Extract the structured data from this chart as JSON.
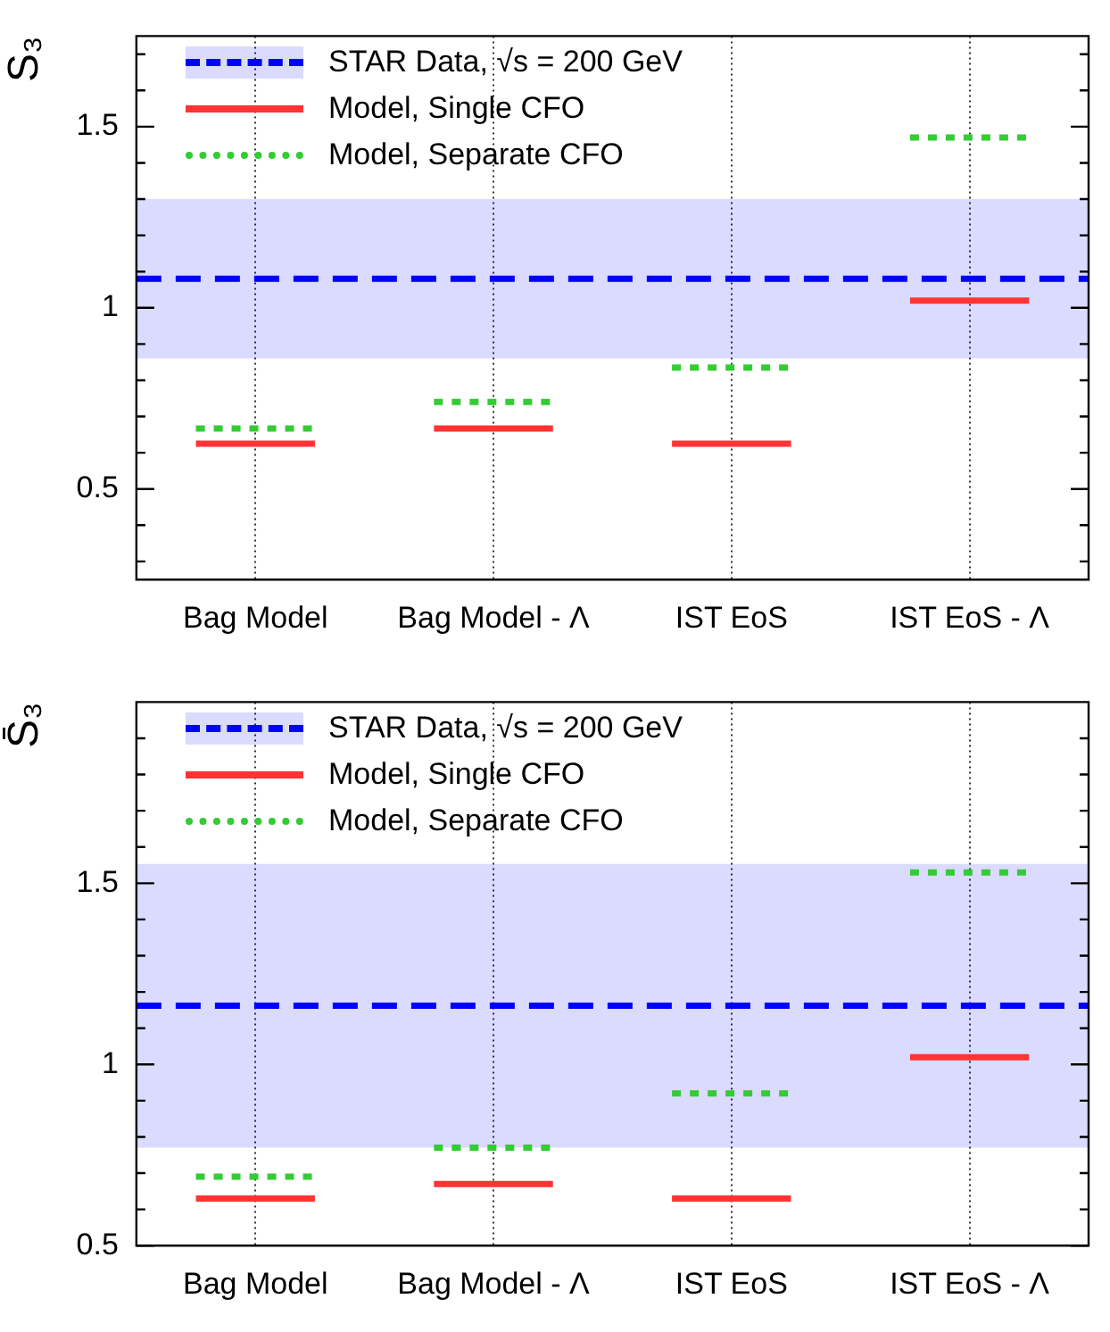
{
  "chart_data": [
    {
      "type": "line",
      "ylabel": "S₃",
      "categories": [
        null,
        null,
        "Bag Model",
        null,
        null,
        null,
        "Bag Model - Λ",
        null,
        null,
        null,
        "IST EoS",
        null,
        null,
        null,
        "IST EoS - Λ",
        null,
        null
      ],
      "series": [
        {
          "name": "STAR Data, √s = 200 GeV",
          "color": "#0000ff",
          "line_style": "dashed",
          "values": [
            1.08,
            1.08,
            1.08,
            1.08,
            1.08,
            1.08,
            1.08,
            1.08,
            1.08,
            1.08,
            1.08,
            1.08,
            1.08,
            1.08,
            1.08,
            1.08,
            1.08
          ],
          "lower": [
            0.86,
            0.86,
            0.86,
            0.86,
            0.86,
            0.86,
            0.86,
            0.86,
            0.86,
            0.86,
            0.86,
            0.86,
            0.86,
            0.86,
            0.86,
            0.86,
            0.86
          ],
          "upper": [
            1.3,
            1.3,
            1.3,
            1.3,
            1.3,
            1.3,
            1.3,
            1.3,
            1.3,
            1.3,
            1.3,
            1.3,
            1.3,
            1.3,
            1.3,
            1.3,
            1.3
          ]
        },
        {
          "name": "Model, Single CFO",
          "color": "#ff3333",
          "line_style": "solid",
          "values": [
            null,
            0.625,
            0.625,
            0.625,
            null,
            0.667,
            0.667,
            0.667,
            null,
            0.625,
            0.625,
            0.625,
            null,
            1.02,
            1.02,
            1.02,
            null
          ]
        },
        {
          "name": "Model, Separate CFO",
          "color": "#33cc33",
          "line_style": "dotted",
          "values": [
            null,
            0.667,
            0.667,
            0.667,
            null,
            0.74,
            0.74,
            0.74,
            null,
            0.835,
            0.835,
            0.835,
            null,
            1.47,
            1.47,
            1.47,
            null
          ]
        }
      ],
      "ylim": [
        0.25,
        1.75
      ],
      "yticks": [
        {
          "value": 0.3,
          "label": null
        },
        {
          "value": 0.4,
          "label": null
        },
        0.5,
        {
          "value": 0.6,
          "label": null
        },
        {
          "value": 0.7,
          "label": null
        },
        {
          "value": 0.8,
          "label": null
        },
        {
          "value": 0.9,
          "label": null
        },
        1,
        {
          "value": 1.1,
          "label": null
        },
        {
          "value": 1.2,
          "label": null
        },
        {
          "value": 1.3,
          "label": null
        },
        {
          "value": 1.4,
          "label": null
        },
        1.5,
        {
          "value": 1.6,
          "label": null
        },
        {
          "value": 1.7,
          "label": null
        }
      ],
      "grid": "x",
      "legend": "top left"
    },
    {
      "type": "line",
      "ylabel": "S̄₃",
      "categories": [
        null,
        null,
        "Bag Model",
        null,
        null,
        null,
        "Bag Model - Λ",
        null,
        null,
        null,
        "IST EoS",
        null,
        null,
        null,
        "IST EoS - Λ",
        null,
        null
      ],
      "series": [
        {
          "name": "STAR Data, √s = 200 GeV",
          "color": "#0000ff",
          "line_style": "dashed",
          "values": [
            1.162,
            1.162,
            1.162,
            1.162,
            1.162,
            1.162,
            1.162,
            1.162,
            1.162,
            1.162,
            1.162,
            1.162,
            1.162,
            1.162,
            1.162,
            1.162,
            1.162
          ],
          "lower": [
            0.77,
            0.77,
            0.77,
            0.77,
            0.77,
            0.77,
            0.77,
            0.77,
            0.77,
            0.77,
            0.77,
            0.77,
            0.77,
            0.77,
            0.77,
            0.77,
            0.77
          ],
          "upper": [
            1.553,
            1.553,
            1.553,
            1.553,
            1.553,
            1.553,
            1.553,
            1.553,
            1.553,
            1.553,
            1.553,
            1.553,
            1.553,
            1.553,
            1.553,
            1.553,
            1.553
          ]
        },
        {
          "name": "Model, Single CFO",
          "color": "#ff3333",
          "line_style": "solid",
          "values": [
            null,
            0.63,
            0.63,
            0.63,
            null,
            0.67,
            0.67,
            0.67,
            null,
            0.63,
            0.63,
            0.63,
            null,
            1.02,
            1.02,
            1.02,
            null
          ]
        },
        {
          "name": "Model, Separate CFO",
          "color": "#33cc33",
          "line_style": "dotted",
          "values": [
            null,
            0.69,
            0.69,
            0.69,
            null,
            0.77,
            0.77,
            0.77,
            null,
            0.92,
            0.92,
            0.92,
            null,
            1.53,
            1.53,
            1.53,
            null
          ]
        }
      ],
      "ylim": [
        0.5,
        2.0
      ],
      "yticks": [
        0.5,
        {
          "value": 0.6,
          "label": null
        },
        {
          "value": 0.7,
          "label": null
        },
        {
          "value": 0.8,
          "label": null
        },
        {
          "value": 0.9,
          "label": null
        },
        1,
        {
          "value": 1.1,
          "label": null
        },
        {
          "value": 1.2,
          "label": null
        },
        {
          "value": 1.3,
          "label": null
        },
        {
          "value": 1.4,
          "label": null
        },
        1.5,
        {
          "value": 1.6,
          "label": null
        },
        {
          "value": 1.7,
          "label": null
        },
        {
          "value": 1.8,
          "label": null
        },
        {
          "value": 1.9,
          "label": null
        }
      ],
      "grid": "x",
      "legend": "top left"
    }
  ]
}
